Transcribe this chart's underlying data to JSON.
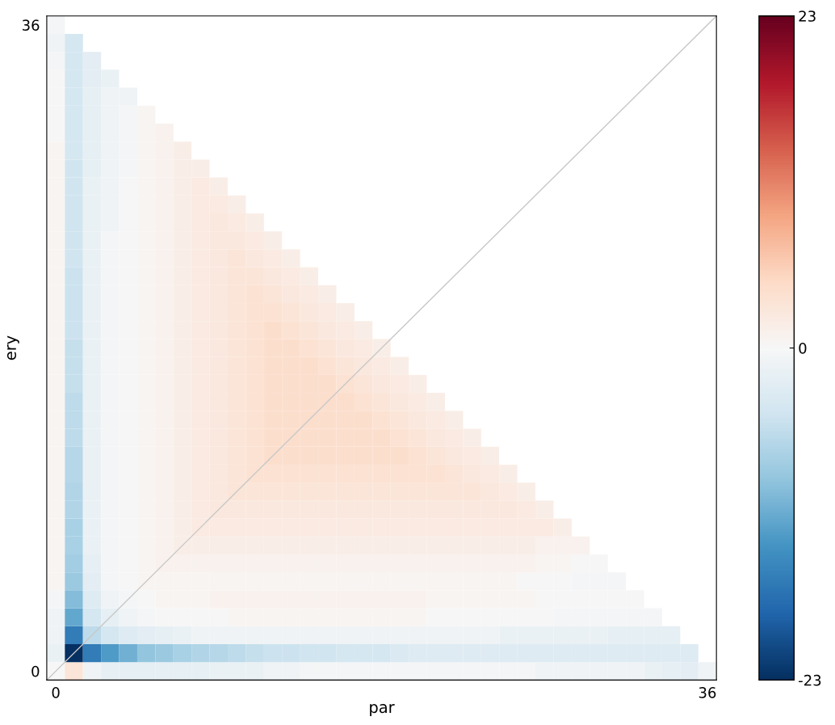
{
  "chart_data": {
    "type": "heatmap",
    "xlabel": "par",
    "ylabel": "ery",
    "xlim": [
      -0.5,
      36.5
    ],
    "ylim": [
      -0.5,
      36.5
    ],
    "xticks": [
      0,
      36
    ],
    "yticks": [
      0,
      36
    ],
    "clim": [
      -23,
      23
    ],
    "cticks": [
      -23,
      0,
      23
    ],
    "series": [
      {
        "type": "line",
        "color": "#c8c8c8",
        "x": [
          -0.5,
          36.5
        ],
        "values": [
          -0.5,
          36.5
        ]
      }
    ],
    "cells": [
      [
        -0.5,
        null,
        null,
        null,
        null,
        null,
        null,
        null,
        null,
        null,
        null,
        null,
        null,
        null,
        null,
        null,
        null,
        null,
        null,
        null,
        null,
        null,
        null,
        null,
        null,
        null,
        null,
        null,
        null,
        null,
        null,
        null,
        null,
        null,
        null,
        null,
        null
      ],
      [
        -1,
        -4,
        null,
        null,
        null,
        null,
        null,
        null,
        null,
        null,
        null,
        null,
        null,
        null,
        null,
        null,
        null,
        null,
        null,
        null,
        null,
        null,
        null,
        null,
        null,
        null,
        null,
        null,
        null,
        null,
        null,
        null,
        null,
        null,
        null,
        null,
        null
      ],
      [
        -0.5,
        -4,
        -2.5,
        null,
        null,
        null,
        null,
        null,
        null,
        null,
        null,
        null,
        null,
        null,
        null,
        null,
        null,
        null,
        null,
        null,
        null,
        null,
        null,
        null,
        null,
        null,
        null,
        null,
        null,
        null,
        null,
        null,
        null,
        null,
        null,
        null,
        null
      ],
      [
        0,
        -4,
        -2.5,
        -1.5,
        null,
        null,
        null,
        null,
        null,
        null,
        null,
        null,
        null,
        null,
        null,
        null,
        null,
        null,
        null,
        null,
        null,
        null,
        null,
        null,
        null,
        null,
        null,
        null,
        null,
        null,
        null,
        null,
        null,
        null,
        null,
        null,
        null
      ],
      [
        0,
        -4,
        -2,
        -1,
        -1,
        null,
        null,
        null,
        null,
        null,
        null,
        null,
        null,
        null,
        null,
        null,
        null,
        null,
        null,
        null,
        null,
        null,
        null,
        null,
        null,
        null,
        null,
        null,
        null,
        null,
        null,
        null,
        null,
        null,
        null,
        null,
        null
      ],
      [
        0,
        -4,
        -2,
        -1,
        -0.5,
        0.5,
        null,
        null,
        null,
        null,
        null,
        null,
        null,
        null,
        null,
        null,
        null,
        null,
        null,
        null,
        null,
        null,
        null,
        null,
        null,
        null,
        null,
        null,
        null,
        null,
        null,
        null,
        null,
        null,
        null,
        null,
        null
      ],
      [
        0,
        -4,
        -2,
        -1,
        -0.5,
        0.5,
        1,
        null,
        null,
        null,
        null,
        null,
        null,
        null,
        null,
        null,
        null,
        null,
        null,
        null,
        null,
        null,
        null,
        null,
        null,
        null,
        null,
        null,
        null,
        null,
        null,
        null,
        null,
        null,
        null,
        null,
        null
      ],
      [
        0.5,
        -4,
        -2,
        -1,
        -0.5,
        0.5,
        1,
        1.5,
        null,
        null,
        null,
        null,
        null,
        null,
        null,
        null,
        null,
        null,
        null,
        null,
        null,
        null,
        null,
        null,
        null,
        null,
        null,
        null,
        null,
        null,
        null,
        null,
        null,
        null,
        null,
        null,
        null
      ],
      [
        0.5,
        -4.5,
        -2,
        -1,
        -0.5,
        0.5,
        1,
        1.5,
        1.5,
        null,
        null,
        null,
        null,
        null,
        null,
        null,
        null,
        null,
        null,
        null,
        null,
        null,
        null,
        null,
        null,
        null,
        null,
        null,
        null,
        null,
        null,
        null,
        null,
        null,
        null,
        null,
        null
      ],
      [
        0.5,
        -4.5,
        -1.5,
        -1,
        0,
        0.5,
        1,
        1.5,
        2,
        1.5,
        null,
        null,
        null,
        null,
        null,
        null,
        null,
        null,
        null,
        null,
        null,
        null,
        null,
        null,
        null,
        null,
        null,
        null,
        null,
        null,
        null,
        null,
        null,
        null,
        null,
        null,
        null
      ],
      [
        0.5,
        -4.5,
        -1.5,
        -1,
        0,
        0.5,
        1,
        1.5,
        2,
        2,
        1.5,
        null,
        null,
        null,
        null,
        null,
        null,
        null,
        null,
        null,
        null,
        null,
        null,
        null,
        null,
        null,
        null,
        null,
        null,
        null,
        null,
        null,
        null,
        null,
        null,
        null,
        null
      ],
      [
        0.5,
        -4.5,
        -1.5,
        -1,
        0,
        0.5,
        1,
        1.5,
        2,
        2.5,
        2,
        1.5,
        null,
        null,
        null,
        null,
        null,
        null,
        null,
        null,
        null,
        null,
        null,
        null,
        null,
        null,
        null,
        null,
        null,
        null,
        null,
        null,
        null,
        null,
        null,
        null,
        null
      ],
      [
        0.5,
        -4.5,
        -1.5,
        -0.5,
        0,
        0.5,
        1,
        1.5,
        2,
        2.5,
        2.5,
        2,
        1.5,
        null,
        null,
        null,
        null,
        null,
        null,
        null,
        null,
        null,
        null,
        null,
        null,
        null,
        null,
        null,
        null,
        null,
        null,
        null,
        null,
        null,
        null,
        null,
        null
      ],
      [
        0.5,
        -4.5,
        -1.5,
        -0.5,
        0,
        0.5,
        1,
        1.5,
        2,
        2.5,
        3,
        2.5,
        2,
        1.5,
        null,
        null,
        null,
        null,
        null,
        null,
        null,
        null,
        null,
        null,
        null,
        null,
        null,
        null,
        null,
        null,
        null,
        null,
        null,
        null,
        null,
        null,
        null
      ],
      [
        0.5,
        -5,
        -1.5,
        -0.5,
        0,
        0.5,
        1,
        1.5,
        2,
        2.5,
        3,
        3,
        2.5,
        2,
        1.5,
        null,
        null,
        null,
        null,
        null,
        null,
        null,
        null,
        null,
        null,
        null,
        null,
        null,
        null,
        null,
        null,
        null,
        null,
        null,
        null,
        null,
        null
      ],
      [
        0.5,
        -5,
        -1.5,
        -0.5,
        0,
        0.5,
        1,
        1.5,
        2,
        2.5,
        3,
        3.5,
        3,
        2.5,
        2,
        1.5,
        null,
        null,
        null,
        null,
        null,
        null,
        null,
        null,
        null,
        null,
        null,
        null,
        null,
        null,
        null,
        null,
        null,
        null,
        null,
        null,
        null
      ],
      [
        0.5,
        -5,
        -1.5,
        -0.5,
        0,
        0.5,
        1,
        1.5,
        2,
        2.5,
        3,
        3.5,
        3.5,
        3,
        2.5,
        2,
        1.5,
        null,
        null,
        null,
        null,
        null,
        null,
        null,
        null,
        null,
        null,
        null,
        null,
        null,
        null,
        null,
        null,
        null,
        null,
        null,
        null
      ],
      [
        0.5,
        -5,
        -1.5,
        -0.5,
        0,
        0.5,
        1,
        1.5,
        2,
        2.5,
        3,
        3.5,
        4,
        3.5,
        3,
        2.5,
        2,
        1.5,
        null,
        null,
        null,
        null,
        null,
        null,
        null,
        null,
        null,
        null,
        null,
        null,
        null,
        null,
        null,
        null,
        null,
        null,
        null
      ],
      [
        0.5,
        -5.5,
        -1.5,
        -0.5,
        0,
        0.5,
        1,
        1.5,
        2,
        2.5,
        3,
        3.5,
        4,
        4,
        3.5,
        3,
        2.5,
        2,
        1.5,
        null,
        null,
        null,
        null,
        null,
        null,
        null,
        null,
        null,
        null,
        null,
        null,
        null,
        null,
        null,
        null,
        null,
        null
      ],
      [
        0.5,
        -5.5,
        -1.5,
        -0.5,
        0,
        0.5,
        1,
        1.5,
        2,
        2.5,
        3,
        3.5,
        4,
        4,
        4,
        3.5,
        3,
        2.5,
        2,
        1.5,
        null,
        null,
        null,
        null,
        null,
        null,
        null,
        null,
        null,
        null,
        null,
        null,
        null,
        null,
        null,
        null,
        null
      ],
      [
        0.5,
        -5.5,
        -1.5,
        -0.5,
        0,
        0.5,
        1,
        1.5,
        2,
        2.5,
        3,
        3.5,
        4,
        4,
        4,
        4,
        3.5,
        3,
        2.5,
        2,
        1.5,
        null,
        null,
        null,
        null,
        null,
        null,
        null,
        null,
        null,
        null,
        null,
        null,
        null,
        null,
        null,
        null
      ],
      [
        0.5,
        -6,
        -1.5,
        -0.5,
        0,
        0.5,
        1,
        1.5,
        2,
        2.5,
        3,
        3.5,
        4,
        4,
        4,
        4,
        4,
        3.5,
        3,
        2.5,
        2,
        1.5,
        null,
        null,
        null,
        null,
        null,
        null,
        null,
        null,
        null,
        null,
        null,
        null,
        null,
        null,
        null
      ],
      [
        0.5,
        -6,
        -1.5,
        -0.5,
        0,
        0.5,
        1,
        1.5,
        2,
        2.5,
        3,
        3.5,
        4,
        4,
        4,
        4,
        4,
        4,
        3.5,
        3,
        2.5,
        2,
        1.5,
        null,
        null,
        null,
        null,
        null,
        null,
        null,
        null,
        null,
        null,
        null,
        null,
        null,
        null
      ],
      [
        0.5,
        -6,
        -1.5,
        -0.5,
        0,
        0.5,
        1,
        1.5,
        2,
        2.5,
        3,
        3.5,
        4,
        4,
        4,
        4,
        4,
        4,
        4,
        3.5,
        3,
        2.5,
        2,
        1.5,
        null,
        null,
        null,
        null,
        null,
        null,
        null,
        null,
        null,
        null,
        null,
        null,
        null
      ],
      [
        0.5,
        -6.5,
        -1.5,
        -0.5,
        0,
        0.5,
        1,
        1.5,
        2,
        2.5,
        3,
        3.5,
        4,
        4,
        4,
        4,
        4,
        4,
        4,
        4,
        3.5,
        3,
        2.5,
        2,
        1.5,
        null,
        null,
        null,
        null,
        null,
        null,
        null,
        null,
        null,
        null,
        null,
        null
      ],
      [
        0.5,
        -6.5,
        -1.5,
        -0.5,
        0,
        0.5,
        1,
        1.5,
        2,
        2.5,
        3,
        3.5,
        3.5,
        3.5,
        3.5,
        3.5,
        3.5,
        3.5,
        3.5,
        3.5,
        3.5,
        3.5,
        3,
        2.5,
        2,
        1.5,
        null,
        null,
        null,
        null,
        null,
        null,
        null,
        null,
        null,
        null,
        null
      ],
      [
        0.5,
        -7,
        -1.5,
        -0.5,
        0,
        0.5,
        1,
        1.5,
        2,
        2.5,
        3,
        3,
        3,
        3,
        3,
        3,
        3,
        3,
        3,
        3,
        3,
        3,
        3,
        3,
        2.5,
        2,
        1.5,
        null,
        null,
        null,
        null,
        null,
        null,
        null,
        null,
        null,
        null
      ],
      [
        0.5,
        -7,
        -1.5,
        -0.5,
        0,
        0.5,
        1,
        1.5,
        2,
        2.5,
        2.5,
        2.5,
        2.5,
        2.5,
        2.5,
        2.5,
        2.5,
        2.5,
        2.5,
        2.5,
        2.5,
        2.5,
        2.5,
        2.5,
        2.5,
        2.5,
        2,
        1.5,
        null,
        null,
        null,
        null,
        null,
        null,
        null,
        null,
        null
      ],
      [
        0.5,
        -7.5,
        -1.5,
        -0.5,
        0,
        0.5,
        1,
        1.5,
        2,
        2,
        2,
        2,
        2,
        2,
        2,
        2,
        2,
        2,
        2,
        2,
        2,
        2,
        2,
        2,
        2,
        2,
        2,
        2,
        1.5,
        null,
        null,
        null,
        null,
        null,
        null,
        null,
        null
      ],
      [
        0.5,
        -7.5,
        -1.5,
        -0.5,
        0,
        0.5,
        1,
        1.5,
        1.5,
        1.5,
        1.5,
        1.5,
        1.5,
        1.5,
        1.5,
        1.5,
        1.5,
        1.5,
        1.5,
        1.5,
        1.5,
        1.5,
        1.5,
        1.5,
        1.5,
        1.5,
        1.5,
        1,
        1,
        1,
        null,
        null,
        null,
        null,
        null,
        null,
        null
      ],
      [
        0.5,
        -8,
        -2,
        -0.5,
        0,
        0.5,
        1,
        1,
        1,
        1,
        1,
        1,
        1,
        1,
        1,
        1,
        1,
        1,
        1,
        1,
        1,
        1,
        1,
        1,
        1,
        1,
        1,
        0.5,
        0.5,
        0,
        0,
        null,
        null,
        null,
        null,
        null,
        null
      ],
      [
        0.5,
        -8.5,
        -2.5,
        -0.5,
        0,
        0.5,
        0.5,
        0.5,
        0.5,
        0.5,
        0.5,
        0.5,
        0.5,
        0.5,
        0.5,
        0.5,
        0.5,
        0.5,
        0.5,
        0.5,
        0.5,
        0.5,
        0.5,
        0.5,
        0.5,
        0.5,
        0,
        0,
        0,
        -0.5,
        -0.5,
        -0.5,
        null,
        null,
        null,
        null,
        null
      ],
      [
        -0.5,
        -10,
        -3,
        -1,
        -0.5,
        0,
        0.5,
        0.5,
        0.5,
        1,
        1,
        1,
        1,
        1,
        1,
        1,
        1,
        1,
        1,
        1,
        1,
        0.5,
        0.5,
        0.5,
        0.5,
        0.5,
        0.5,
        0,
        0,
        0,
        0,
        0,
        0,
        null,
        null,
        null,
        null
      ],
      [
        -1,
        -12,
        -4,
        -2,
        -1,
        -0.5,
        0,
        0,
        0,
        0,
        0.5,
        0.5,
        0.5,
        0.5,
        0.5,
        0.5,
        0.5,
        0.5,
        0.5,
        0.5,
        0.5,
        0,
        0,
        0,
        0,
        0,
        0,
        0,
        -0.5,
        -0.5,
        -0.5,
        -0.5,
        -0.5,
        -0.5,
        null,
        null,
        null
      ],
      [
        -1,
        -16,
        -6,
        -4,
        -3,
        -2.5,
        -2,
        -1.5,
        -1,
        -1,
        -1,
        -1,
        -1,
        -1,
        -1,
        -1,
        -1,
        -1,
        -1,
        -1,
        -1,
        -1,
        -1,
        -1,
        -1,
        -1.5,
        -1.5,
        -1.5,
        -1.5,
        -1.5,
        -1.5,
        -2,
        -2,
        -2,
        -2,
        null,
        null
      ],
      [
        -1.5,
        -23,
        -16,
        -13,
        -11,
        -9,
        -8.5,
        -7.5,
        -7,
        -6.5,
        -6,
        -5.5,
        -5,
        -5,
        -4.5,
        -4.5,
        -4,
        -4,
        -4,
        -3.5,
        -3,
        -3,
        -3,
        -3,
        -3,
        -3,
        -3,
        -3,
        -3,
        -3,
        -3,
        -3,
        -3,
        -3,
        -3,
        -3,
        null
      ],
      [
        0,
        3,
        -1,
        -2,
        -2,
        -2,
        -2,
        -2,
        -2,
        -1.5,
        -1.5,
        -1.5,
        -1,
        -1,
        -0.5,
        -0.5,
        -0.5,
        -0.5,
        -0.5,
        -0.5,
        -0.5,
        -0.5,
        -0.5,
        -0.5,
        -0.5,
        -0.5,
        -0.5,
        -1,
        -1,
        -1,
        -1,
        -1,
        -1,
        -1.5,
        -2,
        -2.5,
        -1
      ]
    ]
  }
}
